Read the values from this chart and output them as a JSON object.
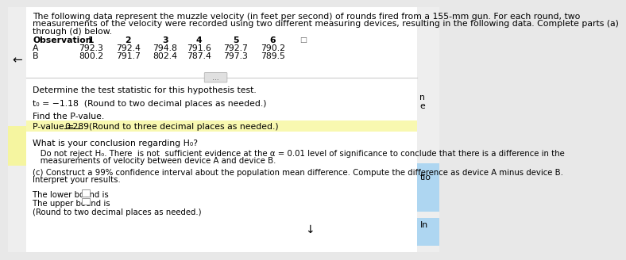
{
  "bg_color": "#e8e8e8",
  "page_bg": "#f5f5f5",
  "content_bg": "#ffffff",
  "arrow_text": "←",
  "intro_line1": "The following data represent the muzzle velocity (in feet per second) of rounds fired from a 155-mm gun. For each round, two",
  "intro_line2": "measurements of the velocity were recorded using two different measuring devices, resulting in the following data. Complete parts (a)",
  "intro_line3": "through (d) below.",
  "table_header": [
    "Observation",
    "1",
    "2",
    "3",
    "4",
    "5",
    "6"
  ],
  "row_A": [
    "A",
    "792.3",
    "792.4",
    "794.8",
    "791.6",
    "792.7",
    "790.2"
  ],
  "row_B": [
    "B",
    "800.2",
    "791.7",
    "802.4",
    "787.4",
    "797.3",
    "789.5"
  ],
  "divider_dots": "...",
  "section1_label": "Determine the test statistic for this hypothesis test.",
  "t0_line": "t₀ = −1.18  (Round to two decimal places as needed.)",
  "pval_label": "Find the P-value.",
  "pval_prefix": "P-value = ",
  "pval_value": "0.289",
  "pval_suffix": "  (Round to three decimal places as needed.)",
  "conclusion_q": "What is your conclusion regarding H₀?",
  "conclusion_line1": "   Do not reject H₀. There  is not  sufficient evidence at the α = 0.01 level of significance to conclude that there is a difference in the",
  "conclusion_line2": "   measurements of velocity between device A and device B.",
  "part_c_line1": "(c) Construct a 99% confidence interval about the population mean difference. Compute the difference as device A minus device B.",
  "part_c_line2": "Interpret your results.",
  "lower_bound": "The lower bound is",
  "upper_bound": "The upper bound is",
  "round_note": "(Round to two decimal places as needed.)",
  "right_clip1": "n",
  "right_clip2": "e",
  "right_clip3": "tio",
  "right_clip4": "In",
  "yellow_left": "#f5f5b0",
  "blue_strip": "#aed6f1",
  "fs": 7.8,
  "fs_bold": 7.8
}
